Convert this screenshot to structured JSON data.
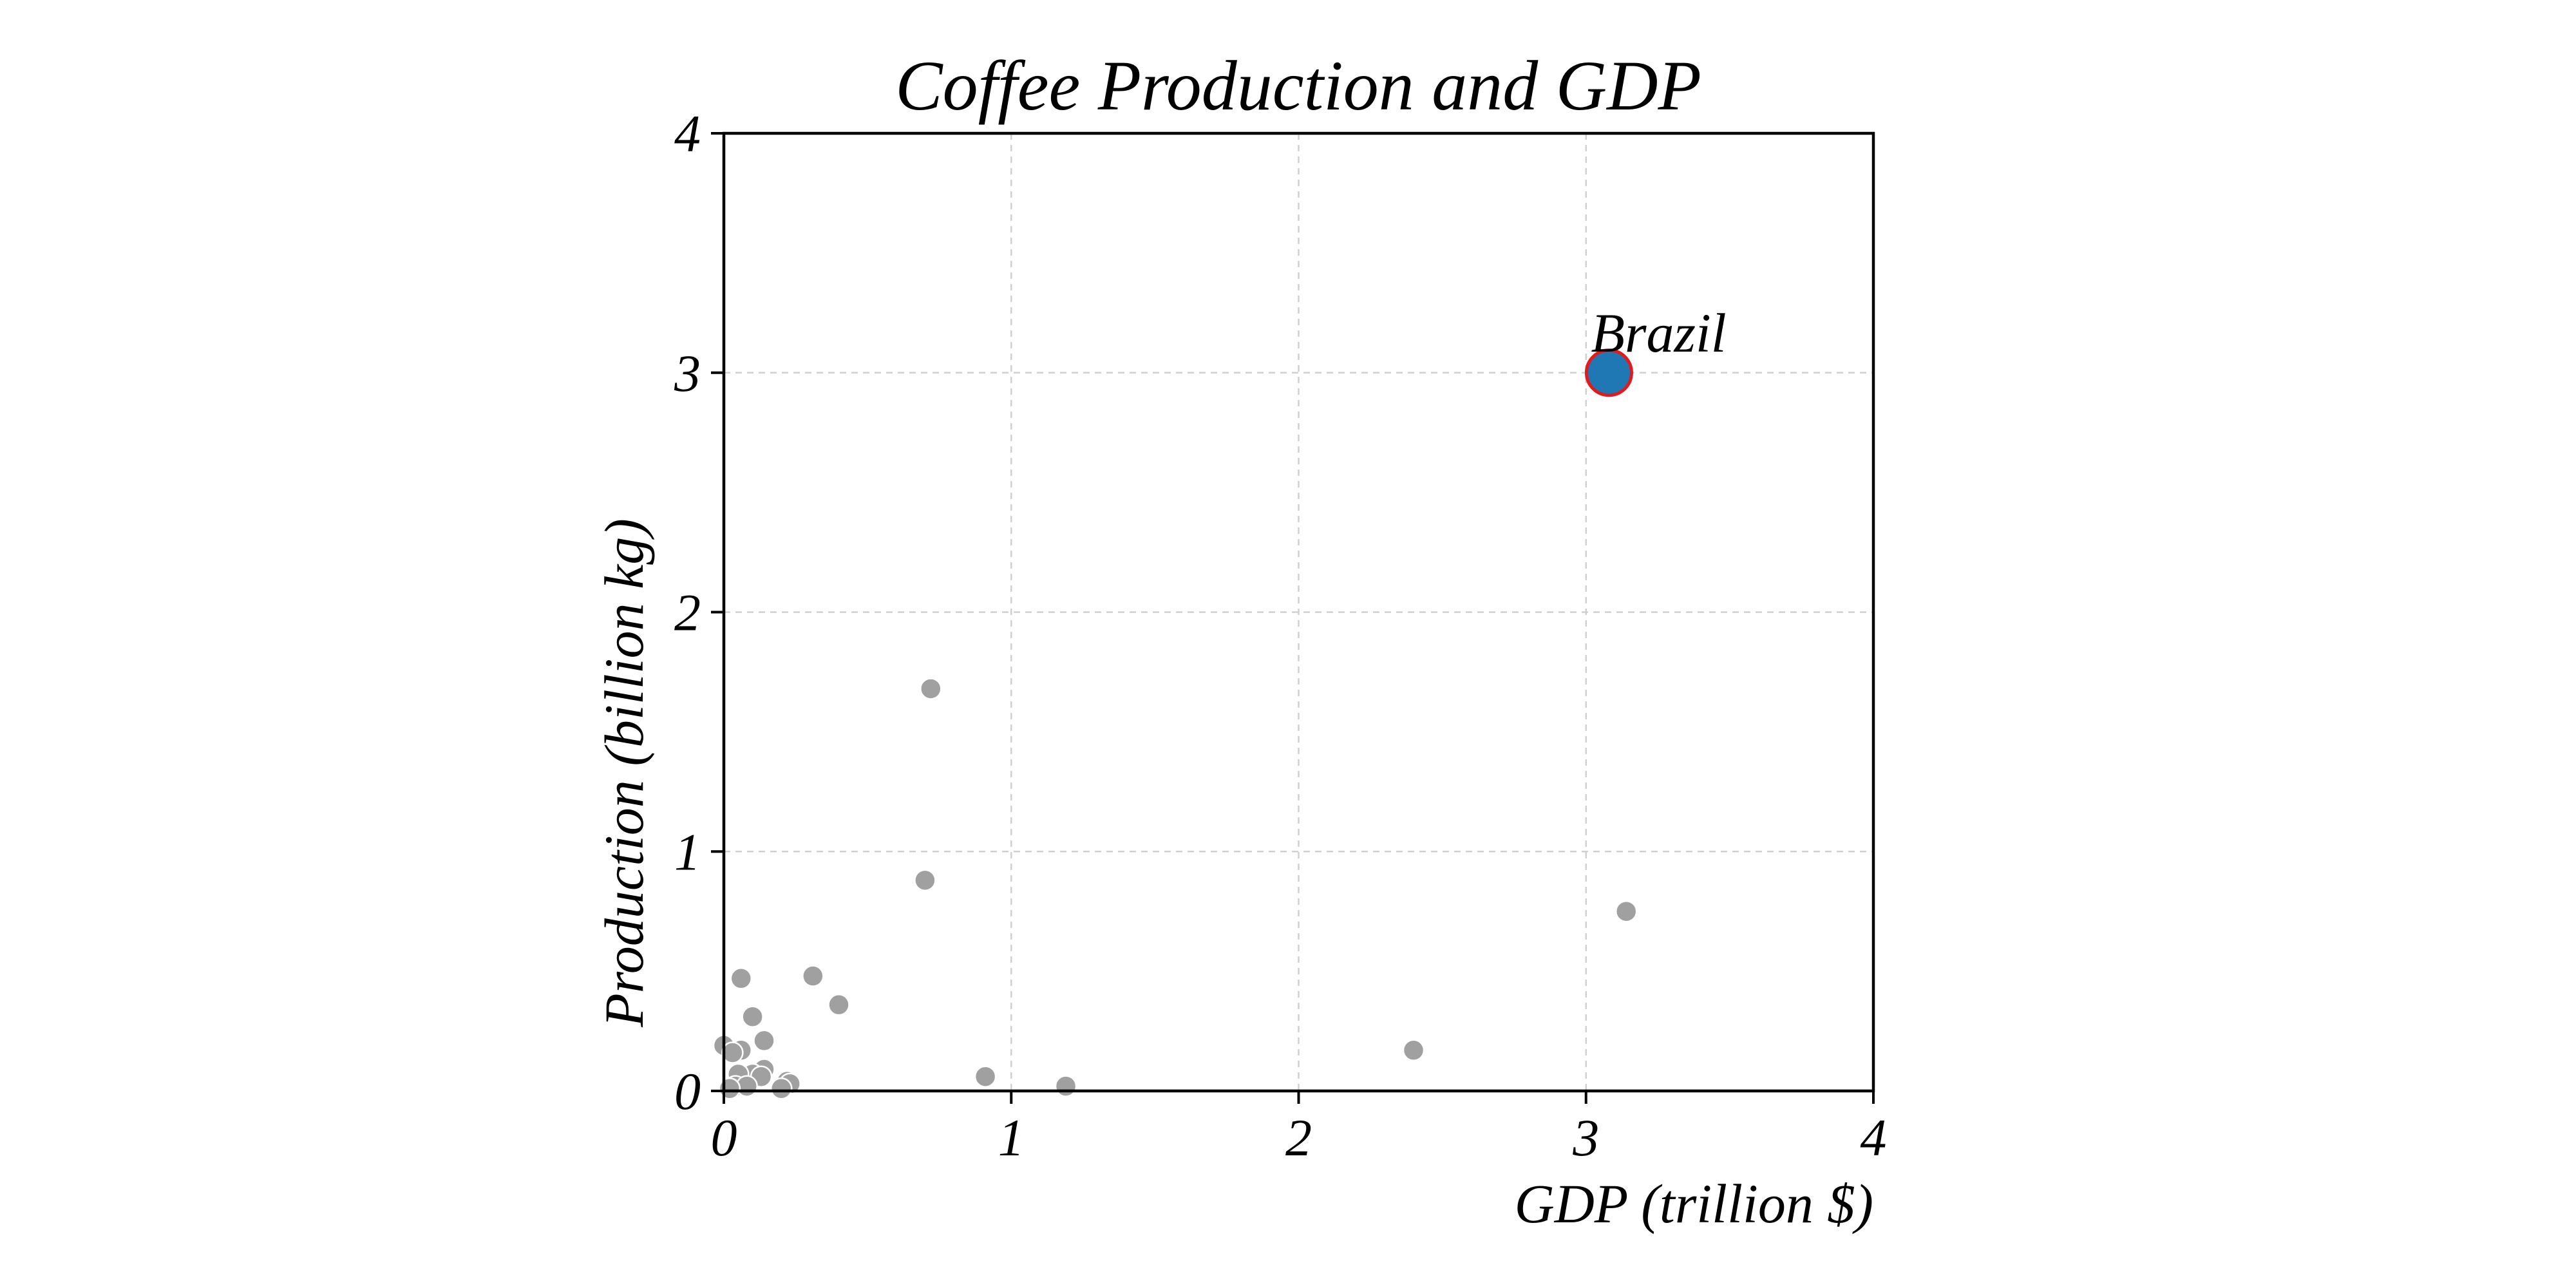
{
  "chart_data": {
    "type": "scatter",
    "title": "Coffee Production and GDP",
    "xlabel": "GDP (trillion $)",
    "ylabel": "Production (billion kg)",
    "xlim": [
      0,
      4
    ],
    "ylim": [
      0,
      4
    ],
    "xticks": [
      "0",
      "1",
      "2",
      "3",
      "4"
    ],
    "yticks": [
      "0",
      "1",
      "2",
      "3",
      "4"
    ],
    "grid": true,
    "colors": {
      "points": "#a0a0a0",
      "highlight_fill": "#1f77b4",
      "highlight_edge": "#e31a1c"
    },
    "series": [
      {
        "points": [
          {
            "x": 0.72,
            "y": 1.68
          },
          {
            "x": 0.7,
            "y": 0.88
          },
          {
            "x": 3.14,
            "y": 0.75
          },
          {
            "x": 0.31,
            "y": 0.48
          },
          {
            "x": 0.06,
            "y": 0.47
          },
          {
            "x": 0.4,
            "y": 0.36
          },
          {
            "x": 0.1,
            "y": 0.31
          },
          {
            "x": 0.14,
            "y": 0.21
          },
          {
            "x": 0.0,
            "y": 0.19
          },
          {
            "x": 0.06,
            "y": 0.17
          },
          {
            "x": 0.03,
            "y": 0.16
          },
          {
            "x": 2.4,
            "y": 0.17
          },
          {
            "x": 0.14,
            "y": 0.09
          },
          {
            "x": 0.1,
            "y": 0.07
          },
          {
            "x": 0.13,
            "y": 0.06
          },
          {
            "x": 0.05,
            "y": 0.07
          },
          {
            "x": 0.91,
            "y": 0.06
          },
          {
            "x": 0.22,
            "y": 0.04
          },
          {
            "x": 0.23,
            "y": 0.03
          },
          {
            "x": 1.19,
            "y": 0.02
          },
          {
            "x": 0.04,
            "y": 0.02
          },
          {
            "x": 0.08,
            "y": 0.02
          },
          {
            "x": 0.2,
            "y": 0.01
          },
          {
            "x": 0.02,
            "y": 0.01
          }
        ]
      }
    ],
    "highlight": {
      "label": "Brazil",
      "x": 3.08,
      "y": 3.0
    }
  }
}
